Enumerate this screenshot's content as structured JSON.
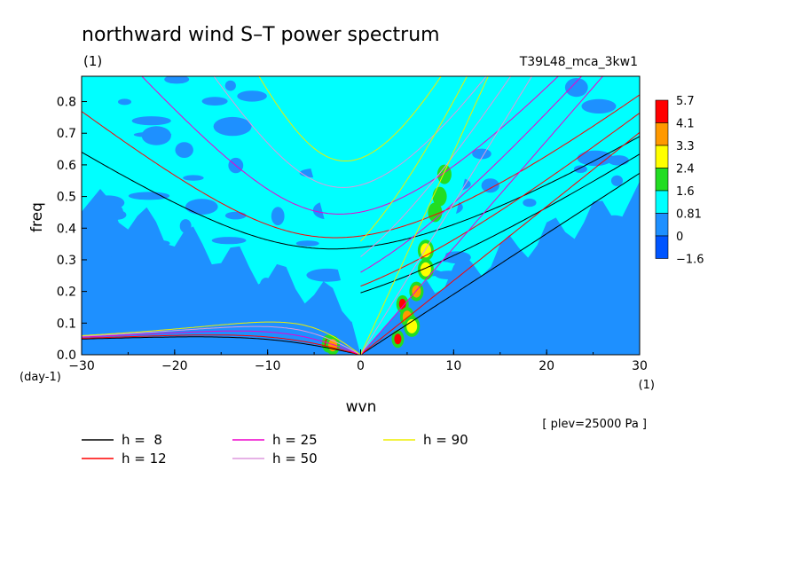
{
  "chart_data": {
    "type": "heatmap",
    "title": "northward wind S–T power spectrum",
    "subtitle_left": "(1)",
    "subtitle_right": "T39L48_mca_3kw1",
    "xlabel": "wvn",
    "ylabel": "freq",
    "x_unit_label": "(1)",
    "y_unit_label": "(day-1)",
    "xlim": [
      -30,
      30
    ],
    "ylim": [
      0,
      0.88
    ],
    "x_ticks": [
      -30,
      -20,
      -10,
      0,
      10,
      20,
      30
    ],
    "y_ticks": [
      0.0,
      0.1,
      0.2,
      0.3,
      0.4,
      0.5,
      0.6,
      0.7,
      0.8
    ],
    "y_tick_labels": [
      "0.0",
      "0.1",
      "0.2",
      "0.3",
      "0.4",
      "0.5",
      "0.6",
      "0.7",
      "0.8"
    ],
    "annotation": "[ plev=25000 Pa ]",
    "colorbar": {
      "labels": [
        "5.7",
        "4.1",
        "3.3",
        "2.4",
        "1.6",
        "0.81",
        "0",
        "-1.6"
      ],
      "colors": [
        "#ff0000",
        "#ff9900",
        "#ffff00",
        "#22dd22",
        "#00ffff",
        "#1e90ff",
        "#0055ff"
      ]
    },
    "field_colors": {
      "background": "#00ffff",
      "low": "#1e90ff",
      "mid": "#22dd22",
      "high": "#ffff00",
      "higher": "#ff9900",
      "peak": "#ff0000"
    },
    "dispersion_curves": [
      {
        "name": "h =  8",
        "h": 8,
        "color": "#000000"
      },
      {
        "name": "h = 12",
        "h": 12,
        "color": "#ff0000"
      },
      {
        "name": "h = 25",
        "h": 25,
        "color": "#ee00cc"
      },
      {
        "name": "h = 50",
        "h": 50,
        "color": "#dd99dd"
      },
      {
        "name": "h = 90",
        "h": 90,
        "color": "#eeee00"
      }
    ],
    "blobs": [
      {
        "k": -3.5,
        "f": 0.035,
        "level": 5
      },
      {
        "k": -3.0,
        "f": 0.03,
        "level": 4
      },
      {
        "k": 4.0,
        "f": 0.05,
        "level": 5
      },
      {
        "k": 4.5,
        "f": 0.16,
        "level": 5
      },
      {
        "k": 5.0,
        "f": 0.12,
        "level": 4
      },
      {
        "k": 6.0,
        "f": 0.2,
        "level": 4
      },
      {
        "k": 5.5,
        "f": 0.09,
        "level": 3
      },
      {
        "k": 7.0,
        "f": 0.33,
        "level": 3
      },
      {
        "k": 7.0,
        "f": 0.27,
        "level": 3
      },
      {
        "k": 8.0,
        "f": 0.45,
        "level": 2
      },
      {
        "k": 8.5,
        "f": 0.5,
        "level": 2
      },
      {
        "k": 9.0,
        "f": 0.57,
        "level": 2
      }
    ]
  },
  "legend_label": "h"
}
